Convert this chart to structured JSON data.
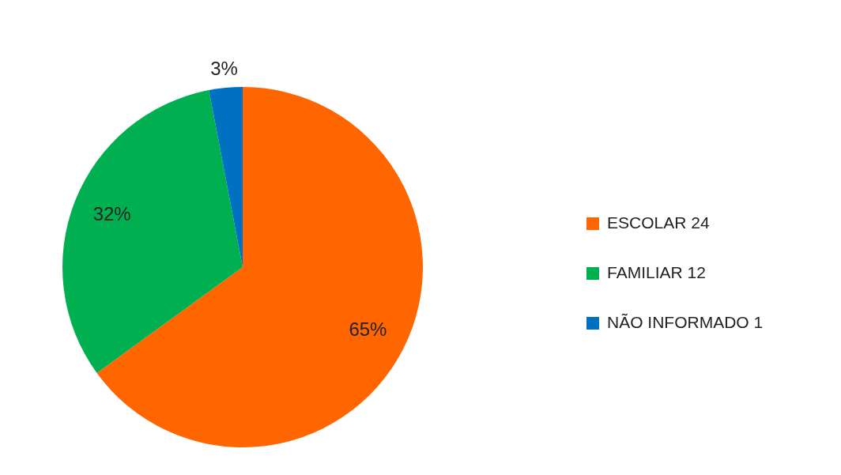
{
  "chart_data": {
    "type": "pie",
    "categories": [
      "ESCOLAR 24",
      "FAMILIAR 12",
      "NÃO INFORMADO 1"
    ],
    "values": [
      65,
      32,
      3
    ],
    "colors": [
      "#ff6600",
      "#00b050",
      "#0070c0"
    ],
    "value_labels": [
      "65%",
      "32%",
      "3%"
    ],
    "legend": "right"
  }
}
